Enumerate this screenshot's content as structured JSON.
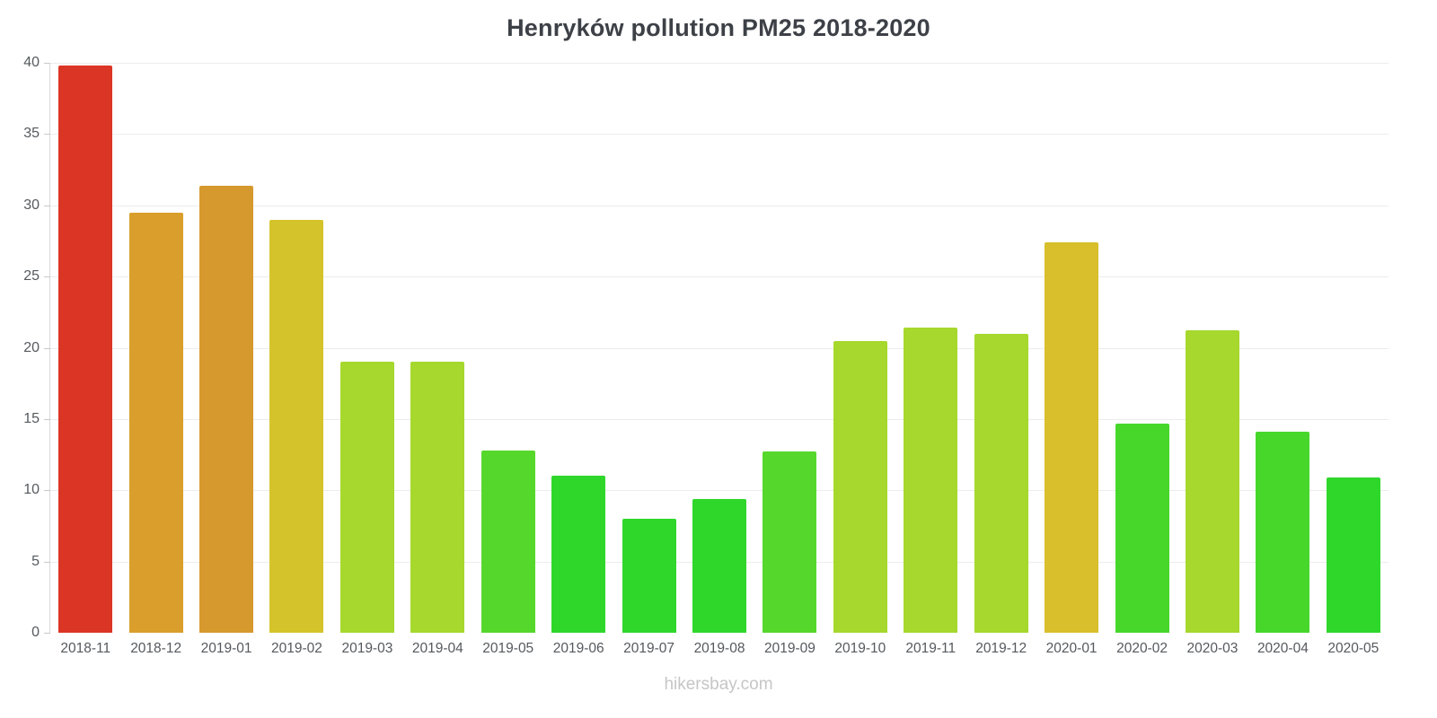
{
  "chart_data": {
    "type": "bar",
    "title": "Henryków pollution PM25 2018-2020",
    "categories": [
      "2018-11",
      "2018-12",
      "2019-01",
      "2019-02",
      "2019-03",
      "2019-04",
      "2019-05",
      "2019-06",
      "2019-07",
      "2019-08",
      "2019-09",
      "2019-10",
      "2019-11",
      "2019-12",
      "2020-01",
      "2020-02",
      "2020-03",
      "2020-04",
      "2020-05"
    ],
    "values": [
      39.8,
      29.5,
      31.4,
      29.0,
      19.0,
      19.0,
      12.8,
      11.0,
      8.0,
      9.4,
      12.7,
      20.5,
      21.4,
      21.0,
      27.4,
      14.7,
      21.2,
      14.1,
      10.9
    ],
    "colors": [
      "#db3526",
      "#d99e2b",
      "#d6992e",
      "#d5c32c",
      "#a6d82d",
      "#a6d82d",
      "#56d72b",
      "#2fd72b",
      "#2fd72b",
      "#2fd72b",
      "#56d72b",
      "#a6d82d",
      "#a6d82d",
      "#a6d82d",
      "#d8bf2b",
      "#47d72b",
      "#a6d82d",
      "#47d72b",
      "#2fd72b"
    ],
    "xlabel": "",
    "ylabel": "",
    "ylim": [
      0,
      40
    ],
    "yticks": [
      0,
      5,
      10,
      15,
      20,
      25,
      30,
      35,
      40
    ],
    "grid": "horizontal",
    "legend": "none"
  },
  "footer": {
    "text": "hikersbay.com"
  }
}
